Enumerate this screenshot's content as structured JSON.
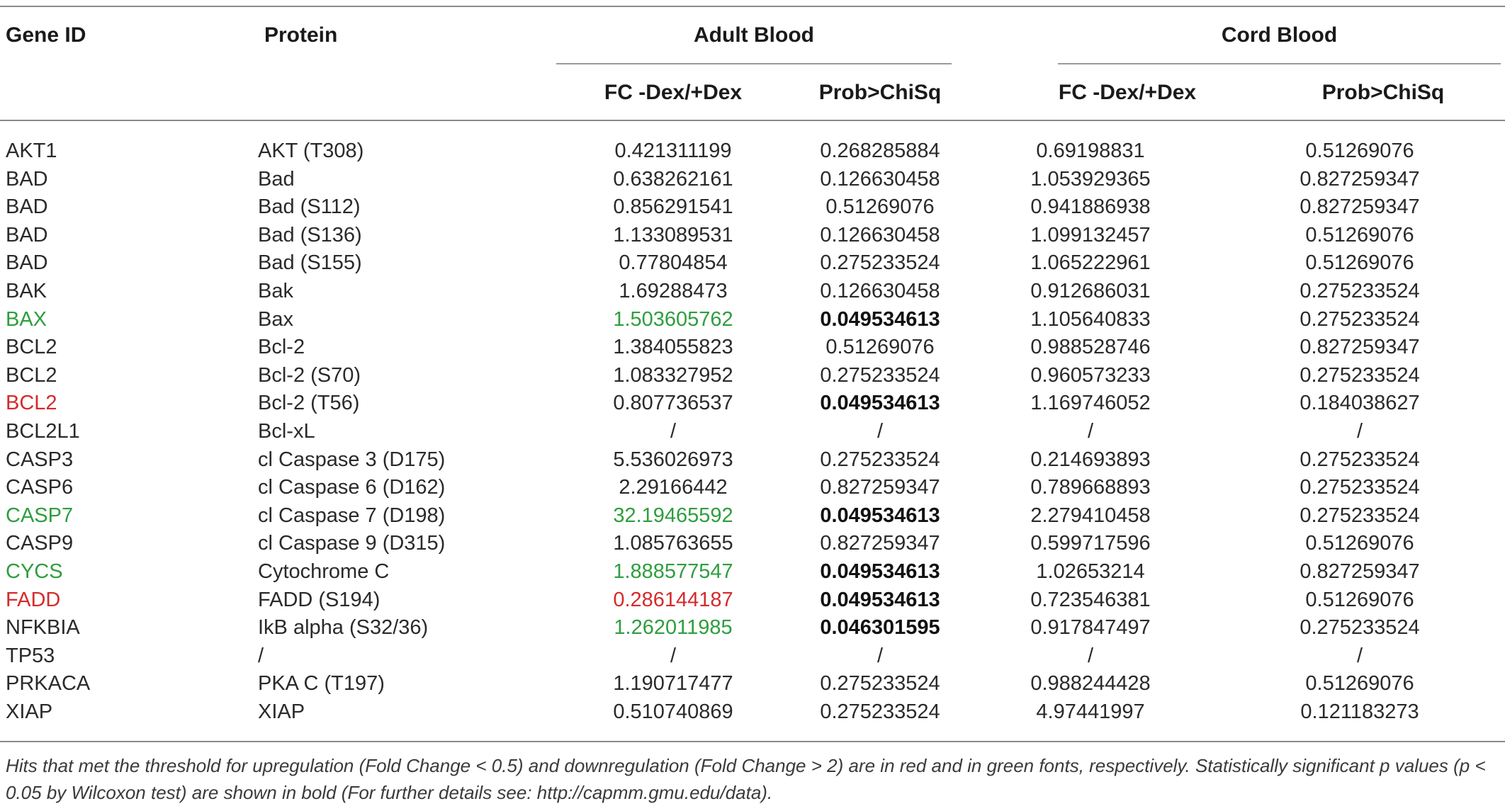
{
  "header": {
    "gene_id": "Gene ID",
    "protein": "Protein",
    "adult_blood": "Adult Blood",
    "cord_blood": "Cord Blood",
    "fc": "FC -Dex/+Dex",
    "prob": "Prob>ChiSq"
  },
  "colors": {
    "upregulation": "#d42b2b",
    "downregulation": "#2e9e3e"
  },
  "rows": [
    {
      "gene": "AKT1",
      "protein": "AKT (T308)",
      "adult_fc": "0.421311199",
      "adult_p": "0.268285884",
      "cord_fc": "0.69198831",
      "cord_p": "0.51269076"
    },
    {
      "gene": "BAD",
      "protein": "Bad",
      "adult_fc": "0.638262161",
      "adult_p": "0.126630458",
      "cord_fc": "1.053929365",
      "cord_p": "0.827259347"
    },
    {
      "gene": "BAD",
      "protein": "Bad (S112)",
      "adult_fc": "0.856291541",
      "adult_p": "0.51269076",
      "cord_fc": "0.941886938",
      "cord_p": "0.827259347"
    },
    {
      "gene": "BAD",
      "protein": "Bad (S136)",
      "adult_fc": "1.133089531",
      "adult_p": "0.126630458",
      "cord_fc": "1.099132457",
      "cord_p": "0.51269076"
    },
    {
      "gene": "BAD",
      "protein": "Bad (S155)",
      "adult_fc": "0.77804854",
      "adult_p": "0.275233524",
      "cord_fc": "1.065222961",
      "cord_p": "0.51269076"
    },
    {
      "gene": "BAK",
      "protein": "Bak",
      "adult_fc": "1.69288473",
      "adult_p": "0.126630458",
      "cord_fc": "0.912686031",
      "cord_p": "0.275233524"
    },
    {
      "gene": "BAX",
      "protein": "Bax",
      "adult_fc": "1.503605762",
      "adult_p": "0.049534613",
      "cord_fc": "1.105640833",
      "cord_p": "0.275233524",
      "gene_color": "green",
      "fc_color": "green",
      "p_bold": true
    },
    {
      "gene": "BCL2",
      "protein": "Bcl-2",
      "adult_fc": "1.384055823",
      "adult_p": "0.51269076",
      "cord_fc": "0.988528746",
      "cord_p": "0.827259347"
    },
    {
      "gene": "BCL2",
      "protein": "Bcl-2 (S70)",
      "adult_fc": "1.083327952",
      "adult_p": "0.275233524",
      "cord_fc": "0.960573233",
      "cord_p": "0.275233524"
    },
    {
      "gene": "BCL2",
      "protein": "Bcl-2 (T56)",
      "adult_fc": "0.807736537",
      "adult_p": "0.049534613",
      "cord_fc": "1.169746052",
      "cord_p": "0.184038627",
      "gene_color": "red",
      "p_bold": true
    },
    {
      "gene": "BCL2L1",
      "protein": "Bcl-xL",
      "adult_fc": "/",
      "adult_p": "/",
      "cord_fc": "/",
      "cord_p": "/"
    },
    {
      "gene": "CASP3",
      "protein": "cl Caspase 3 (D175)",
      "adult_fc": "5.536026973",
      "adult_p": "0.275233524",
      "cord_fc": "0.214693893",
      "cord_p": "0.275233524"
    },
    {
      "gene": "CASP6",
      "protein": "cl Caspase 6 (D162)",
      "adult_fc": "2.29166442",
      "adult_p": "0.827259347",
      "cord_fc": "0.789668893",
      "cord_p": "0.275233524"
    },
    {
      "gene": "CASP7",
      "protein": "cl Caspase 7 (D198)",
      "adult_fc": "32.19465592",
      "adult_p": "0.049534613",
      "cord_fc": "2.279410458",
      "cord_p": "0.275233524",
      "gene_color": "green",
      "fc_color": "green",
      "p_bold": true
    },
    {
      "gene": "CASP9",
      "protein": "cl Caspase 9 (D315)",
      "adult_fc": "1.085763655",
      "adult_p": "0.827259347",
      "cord_fc": "0.599717596",
      "cord_p": "0.51269076"
    },
    {
      "gene": "CYCS",
      "protein": "Cytochrome C",
      "adult_fc": "1.888577547",
      "adult_p": "0.049534613",
      "cord_fc": "1.02653214",
      "cord_p": "0.827259347",
      "gene_color": "green",
      "fc_color": "green",
      "p_bold": true
    },
    {
      "gene": "FADD",
      "protein": "FADD (S194)",
      "adult_fc": "0.286144187",
      "adult_p": "0.049534613",
      "cord_fc": "0.723546381",
      "cord_p": "0.51269076",
      "gene_color": "red",
      "fc_color": "red",
      "p_bold": true
    },
    {
      "gene": "NFKBIA",
      "protein": "IkB alpha (S32/36)",
      "adult_fc": "1.262011985",
      "adult_p": "0.046301595",
      "cord_fc": "0.917847497",
      "cord_p": "0.275233524",
      "fc_color": "green",
      "p_bold": true
    },
    {
      "gene": "TP53",
      "protein": "/",
      "adult_fc": "/",
      "adult_p": "/",
      "cord_fc": "/",
      "cord_p": "/"
    },
    {
      "gene": "PRKACA",
      "protein": "PKA C (T197)",
      "adult_fc": "1.190717477",
      "adult_p": "0.275233524",
      "cord_fc": "0.988244428",
      "cord_p": "0.51269076"
    },
    {
      "gene": "XIAP",
      "protein": "XIAP",
      "adult_fc": "0.510740869",
      "adult_p": "0.275233524",
      "cord_fc": "4.97441997",
      "cord_p": "0.121183273"
    }
  ],
  "footnote": "Hits that met the threshold for upregulation (Fold Change < 0.5) and downregulation (Fold Change > 2) are in red and in green fonts, respectively. Statistically significant p values (p < 0.05 by Wilcoxon test) are shown in bold (For further details see: http://capmm.gmu.edu/data)."
}
